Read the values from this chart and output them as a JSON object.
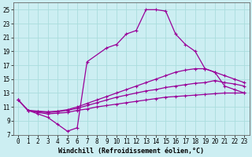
{
  "xlabel": "Windchill (Refroidissement éolien,°C)",
  "bg_color": "#cceef2",
  "line_color": "#990099",
  "xlim": [
    -0.5,
    23.5
  ],
  "ylim": [
    7,
    26
  ],
  "yticks": [
    7,
    9,
    11,
    13,
    15,
    17,
    19,
    21,
    23,
    25
  ],
  "xticks": [
    0,
    1,
    2,
    3,
    4,
    5,
    6,
    7,
    8,
    9,
    10,
    11,
    12,
    13,
    14,
    15,
    16,
    17,
    18,
    19,
    20,
    21,
    22,
    23
  ],
  "curve1_x": [
    0,
    1,
    2,
    3,
    4,
    5,
    6,
    7,
    9,
    10,
    11,
    12,
    13,
    14,
    15,
    16,
    17,
    18,
    19,
    20,
    21,
    22,
    23
  ],
  "curve1_y": [
    12.0,
    10.5,
    10.0,
    9.5,
    8.5,
    7.5,
    8.0,
    17.5,
    19.5,
    20.0,
    21.5,
    22.0,
    25.0,
    25.0,
    24.8,
    21.5,
    20.0,
    19.0,
    16.5,
    16.0,
    14.0,
    13.5,
    13.0
  ],
  "curve2_x": [
    0,
    1,
    2,
    3,
    4,
    5,
    6,
    7,
    8,
    9,
    10,
    11,
    12,
    13,
    14,
    15,
    16,
    17,
    18,
    19,
    20,
    21,
    22,
    23
  ],
  "curve2_y": [
    12.0,
    10.5,
    10.2,
    10.0,
    10.1,
    10.2,
    10.5,
    10.7,
    11.0,
    11.2,
    11.4,
    11.6,
    11.8,
    12.0,
    12.2,
    12.4,
    12.5,
    12.6,
    12.7,
    12.8,
    12.9,
    13.0,
    13.0,
    13.0
  ],
  "curve3_x": [
    0,
    1,
    2,
    3,
    4,
    5,
    6,
    7,
    8,
    9,
    10,
    11,
    12,
    13,
    14,
    15,
    16,
    17,
    18,
    19,
    20,
    21,
    22,
    23
  ],
  "curve3_y": [
    12.0,
    10.5,
    10.3,
    10.2,
    10.3,
    10.5,
    10.8,
    11.2,
    11.6,
    12.0,
    12.4,
    12.7,
    13.0,
    13.3,
    13.5,
    13.8,
    14.0,
    14.2,
    14.4,
    14.5,
    14.8,
    14.5,
    14.3,
    14.0
  ],
  "curve4_x": [
    0,
    1,
    2,
    3,
    4,
    5,
    6,
    7,
    8,
    9,
    10,
    11,
    12,
    13,
    14,
    15,
    16,
    17,
    18,
    19,
    20,
    21,
    22,
    23
  ],
  "curve4_y": [
    12.0,
    10.5,
    10.4,
    10.3,
    10.4,
    10.6,
    11.0,
    11.5,
    12.0,
    12.5,
    13.0,
    13.5,
    14.0,
    14.5,
    15.0,
    15.5,
    16.0,
    16.3,
    16.5,
    16.5,
    16.0,
    15.5,
    15.0,
    14.5
  ],
  "marker": "+",
  "markersize": 3,
  "linewidth": 0.9,
  "tick_fontsize": 5.5,
  "label_fontsize": 6.0,
  "grid_color": "#aadddd",
  "spine_color": "#666666"
}
